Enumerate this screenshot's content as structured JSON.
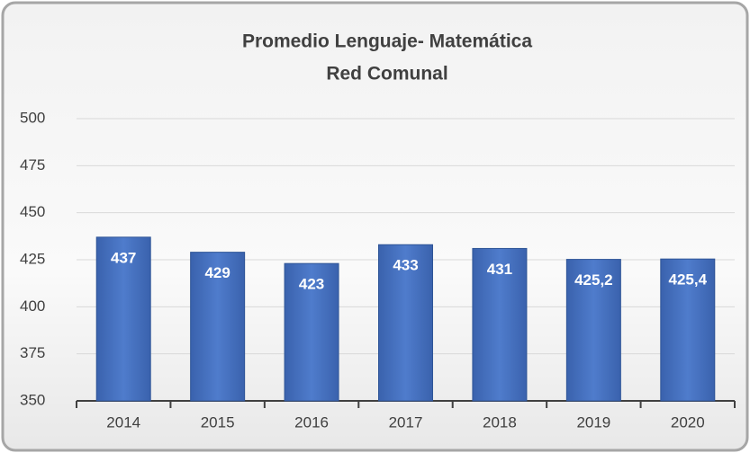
{
  "chart_data": {
    "type": "bar",
    "title": "Promedio Lenguaje- Matemática",
    "subtitle": "Red Comunal",
    "categories": [
      "2014",
      "2015",
      "2016",
      "2017",
      "2018",
      "2019",
      "2020"
    ],
    "values": [
      437,
      429,
      423,
      433,
      431,
      425.2,
      425.4
    ],
    "value_labels": [
      "437",
      "429",
      "423",
      "433",
      "431",
      "425,2",
      "425,4"
    ],
    "color": "#4472c4",
    "ylim": [
      350,
      500
    ],
    "yticks": [
      350,
      375,
      400,
      425,
      450,
      475,
      500
    ],
    "grid": true
  }
}
